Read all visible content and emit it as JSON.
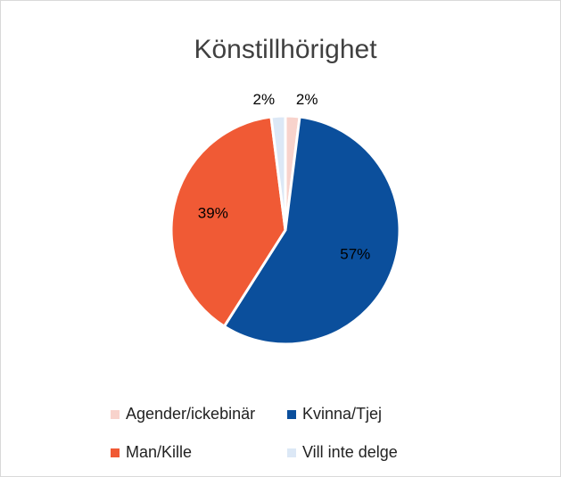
{
  "chart_data": {
    "type": "pie",
    "title": "Könstillhörighet",
    "categories": [
      "Agender/ickebinär",
      "Kvinna/Tjej",
      "Man/Kille",
      "Vill inte delge"
    ],
    "values": [
      2,
      57,
      39,
      2
    ],
    "value_labels": [
      "2%",
      "57%",
      "39%",
      "2%"
    ],
    "colors": [
      "#f8d3cc",
      "#0b4f9c",
      "#f05a35",
      "#dce8f6"
    ],
    "legend": "bottom"
  }
}
